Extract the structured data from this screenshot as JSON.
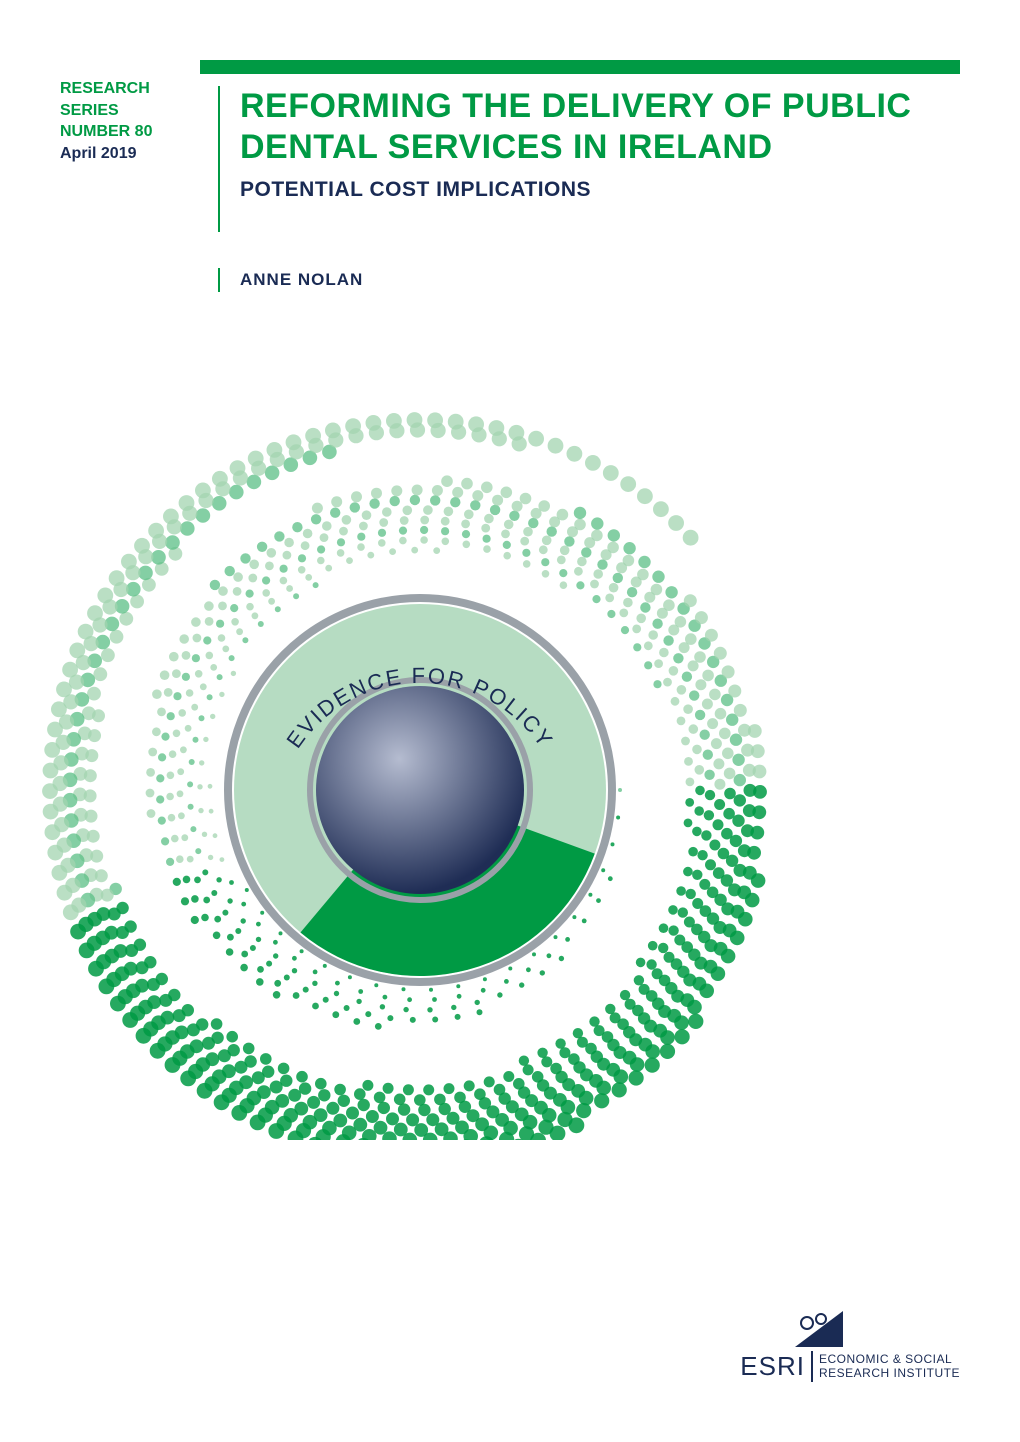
{
  "colors": {
    "green_primary": "#009a44",
    "green_light": "#a3d4b0",
    "green_mid": "#5bbf86",
    "navy": "#1a2b54",
    "grey_ring": "#9aa1a8",
    "sphere_dark": "#2a3a64",
    "sphere_light": "#b5bcd0",
    "white": "#ffffff"
  },
  "series": {
    "line1": "RESEARCH",
    "line2": "SERIES",
    "line3": "NUMBER 80",
    "line4": "April 2019"
  },
  "title": {
    "main": "REFORMING THE DELIVERY OF PUBLIC DENTAL SERVICES IN IRELAND",
    "sub": "POTENTIAL COST IMPLICATIONS"
  },
  "author": "ANNE NOLAN",
  "graphic": {
    "curved_text": "EVIDENCE FOR POLICY",
    "curved_text_fontsize": 22,
    "outer_dot_rings": 18,
    "outer_dot_color_a": "#a3d4b0",
    "outer_dot_color_b": "#5bbf86",
    "ring_outer_color": "#9aa1a8",
    "disc_color": "#8fc9a1",
    "wedge_color": "#009a44",
    "wedge_start_deg": 20,
    "wedge_end_deg": 130,
    "sphere_gradient_from": "#b5bcd0",
    "sphere_gradient_to": "#1f2d55"
  },
  "footer": {
    "org_short": "ESRI",
    "org_line1": "ECONOMIC & SOCIAL",
    "org_line2": "RESEARCH INSTITUTE"
  }
}
